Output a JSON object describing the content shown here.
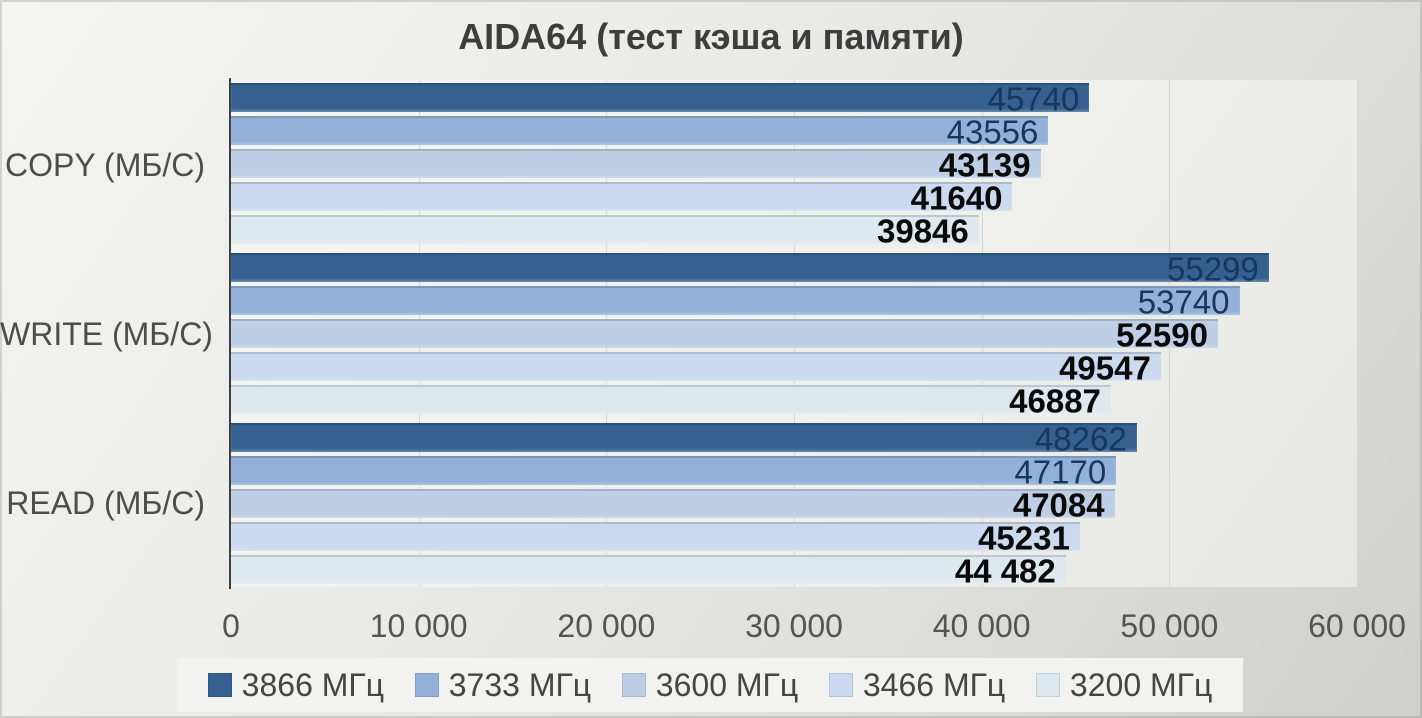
{
  "chart_data": {
    "type": "bar",
    "orientation": "horizontal",
    "title": "AIDA64 (тест кэша и памяти)",
    "categories": [
      "COPY (МБ/С)",
      "WRITE (МБ/С)",
      "READ (МБ/С)"
    ],
    "series": [
      {
        "name": "3866 МГц",
        "color": "#35608F",
        "label_color": "#17375E",
        "label_bold": false,
        "values": [
          45740,
          55299,
          48262
        ],
        "labels": [
          "45740",
          "55299",
          "48262"
        ]
      },
      {
        "name": "3733 МГц",
        "color": "#92B0D8",
        "label_color": "#17375E",
        "label_bold": false,
        "values": [
          43556,
          53740,
          47170
        ],
        "labels": [
          "43556",
          "53740",
          "47170"
        ]
      },
      {
        "name": "3600 МГц",
        "color": "#BDCEE5",
        "label_color": "#0A0A0A",
        "label_bold": true,
        "values": [
          43139,
          52590,
          47084
        ],
        "labels": [
          "43139",
          "52590",
          "47084"
        ]
      },
      {
        "name": "3466 МГц",
        "color": "#CBDAEE",
        "label_color": "#0A0A0A",
        "label_bold": true,
        "values": [
          41640,
          49547,
          45231
        ],
        "labels": [
          "41640",
          "49547",
          "45231"
        ]
      },
      {
        "name": "3200 МГц",
        "color": "#DDE9EE",
        "label_color": "#0A0A0A",
        "label_bold": true,
        "values": [
          39846,
          46887,
          44482
        ],
        "labels": [
          "39846",
          "46887",
          "44 482"
        ]
      }
    ],
    "xlim": [
      0,
      60000
    ],
    "x_ticks": [
      "0",
      "10 000",
      "20 000",
      "30 000",
      "40 000",
      "50 000",
      "60 000"
    ],
    "grid": true,
    "legend_position": "bottom"
  }
}
